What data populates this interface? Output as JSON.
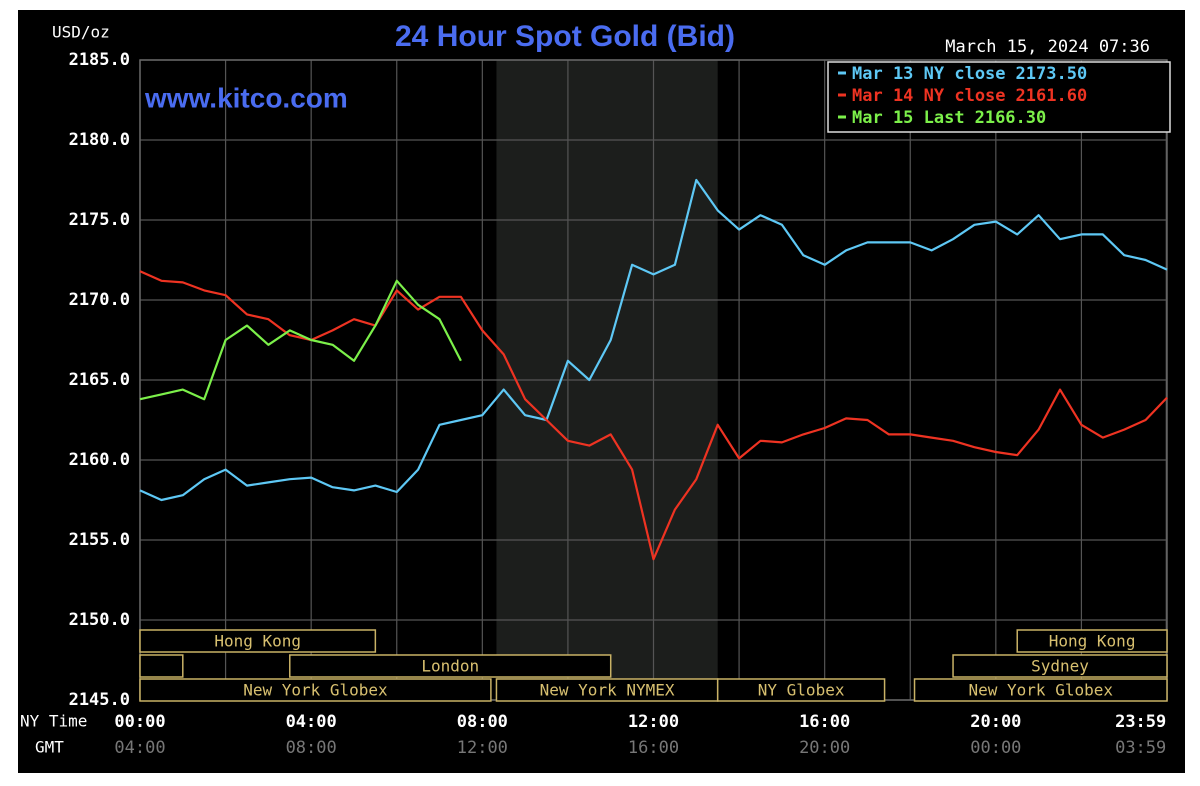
{
  "chart_data": {
    "type": "line",
    "title": "24 Hour Spot Gold (Bid)",
    "watermark": "www.kitco.com",
    "timestamp": "March 15, 2024 07:36",
    "ylabel": "USD/oz",
    "xlabel": "NY Time",
    "x2label": "GMT",
    "x": [
      0,
      0.5,
      1,
      1.5,
      2,
      2.5,
      3,
      3.5,
      4,
      4.5,
      5,
      5.5,
      6,
      6.5,
      7,
      7.5,
      8,
      8.5,
      9,
      9.5,
      10,
      10.5,
      11,
      11.5,
      12,
      12.5,
      13,
      13.5,
      14,
      14.5,
      15,
      15.5,
      16,
      16.5,
      17,
      17.5,
      18,
      18.5,
      19,
      19.5,
      20,
      20.5,
      21,
      21.5,
      22,
      22.5,
      23,
      23.5,
      24
    ],
    "xlim": [
      0,
      24
    ],
    "ylim": [
      2145,
      2185
    ],
    "xticks": [
      {
        "value": 0,
        "label": "00:00"
      },
      {
        "value": 4,
        "label": "04:00"
      },
      {
        "value": 8,
        "label": "08:00"
      },
      {
        "value": 12,
        "label": "12:00"
      },
      {
        "value": 16,
        "label": "16:00"
      },
      {
        "value": 20,
        "label": "20:00"
      },
      {
        "value": 23.983,
        "label": "23:59"
      }
    ],
    "x2ticks": [
      {
        "value": 0,
        "label": "04:00"
      },
      {
        "value": 4,
        "label": "08:00"
      },
      {
        "value": 8,
        "label": "12:00"
      },
      {
        "value": 12,
        "label": "16:00"
      },
      {
        "value": 16,
        "label": "20:00"
      },
      {
        "value": 20,
        "label": "00:00"
      },
      {
        "value": 23.983,
        "label": "03:59"
      }
    ],
    "xminorticks": [
      2,
      6,
      10,
      14,
      18,
      22
    ],
    "yticks": [
      {
        "value": 2145,
        "label": "2145.0"
      },
      {
        "value": 2150,
        "label": "2150.0"
      },
      {
        "value": 2155,
        "label": "2155.0"
      },
      {
        "value": 2160,
        "label": "2160.0"
      },
      {
        "value": 2165,
        "label": "2165.0"
      },
      {
        "value": 2170,
        "label": "2170.0"
      },
      {
        "value": 2175,
        "label": "2175.0"
      },
      {
        "value": 2180,
        "label": "2180.0"
      },
      {
        "value": 2185,
        "label": "2185.0"
      }
    ],
    "grid": true,
    "legend": "top-right",
    "series": [
      {
        "name": "Mar 13 NY close",
        "color": "#5ec8f5",
        "legend_value": {
          "value": 2173.5,
          "label": "2173.50"
        },
        "values": [
          2158.1,
          2157.5,
          2157.8,
          2158.8,
          2159.4,
          2158.4,
          2158.6,
          2158.8,
          2158.9,
          2158.3,
          2158.1,
          2158.4,
          2158.0,
          2159.4,
          2162.2,
          2162.5,
          2162.8,
          2164.4,
          2162.8,
          2162.5,
          2166.2,
          2165.0,
          2167.5,
          2172.2,
          2171.6,
          2172.2,
          2177.5,
          2175.6,
          2174.4,
          2175.3,
          2174.7,
          2172.8,
          2172.2,
          2173.1,
          2173.6,
          2173.6,
          2173.6,
          2173.1,
          2173.8,
          2174.7,
          2174.9,
          2174.1,
          2175.3,
          2173.8,
          2174.1,
          2174.1,
          2172.8,
          2172.5,
          2171.9
        ]
      },
      {
        "name": "Mar 14 NY close",
        "color": "#ee3322",
        "legend_value": {
          "value": 2161.6,
          "label": "2161.60"
        },
        "values": [
          2171.8,
          2171.2,
          2171.1,
          2170.6,
          2170.3,
          2169.1,
          2168.8,
          2167.8,
          2167.5,
          2168.1,
          2168.8,
          2168.4,
          2170.6,
          2169.4,
          2170.2,
          2170.2,
          2168.1,
          2166.6,
          2163.8,
          2162.5,
          2161.2,
          2160.9,
          2161.6,
          2159.4,
          2153.8,
          2156.9,
          2158.8,
          2162.2,
          2160.1,
          2161.2,
          2161.1,
          2161.6,
          2162.0,
          2162.6,
          2162.5,
          2161.6,
          2161.6,
          2161.4,
          2161.2,
          2160.8,
          2160.5,
          2160.3,
          2161.9,
          2164.4,
          2162.2,
          2161.4,
          2161.9,
          2162.5,
          2163.9
        ]
      },
      {
        "name": "Mar 15 Last",
        "color": "#7cf04a",
        "legend_value": {
          "value": 2166.3,
          "label": "2166.30"
        },
        "values": [
          2163.8,
          2164.1,
          2164.4,
          2163.8,
          2167.5,
          2168.4,
          2167.2,
          2168.1,
          2167.5,
          2167.2,
          2166.2,
          2168.4,
          2171.2,
          2169.7,
          2168.8,
          2166.2,
          null,
          null,
          null,
          null,
          null,
          null,
          null,
          null,
          null,
          null,
          null,
          null,
          null,
          null,
          null,
          null,
          null,
          null,
          null,
          null,
          null,
          null,
          null,
          null,
          null,
          null,
          null,
          null,
          null,
          null,
          null,
          null,
          null
        ]
      }
    ],
    "sessions": [
      {
        "name": "Hong Kong",
        "start": 0,
        "end": 5.5
      },
      {
        "name": null,
        "start": 0,
        "end": 1
      },
      {
        "name": "London",
        "start": 3.5,
        "end": 11
      },
      {
        "name": "New York Globex",
        "start": 0,
        "end": 8.2
      },
      {
        "name": "New York NYMEX",
        "start": 8.33,
        "end": 13.5,
        "shaded": true
      },
      {
        "name": "NY Globex",
        "start": 13.5,
        "end": 17.4
      },
      {
        "name": "Hong Kong",
        "start": 20.5,
        "end": 24
      },
      {
        "name": "Sydney",
        "start": 19,
        "end": 24
      },
      {
        "name": "New York Globex",
        "start": 18.1,
        "end": 24
      }
    ]
  }
}
